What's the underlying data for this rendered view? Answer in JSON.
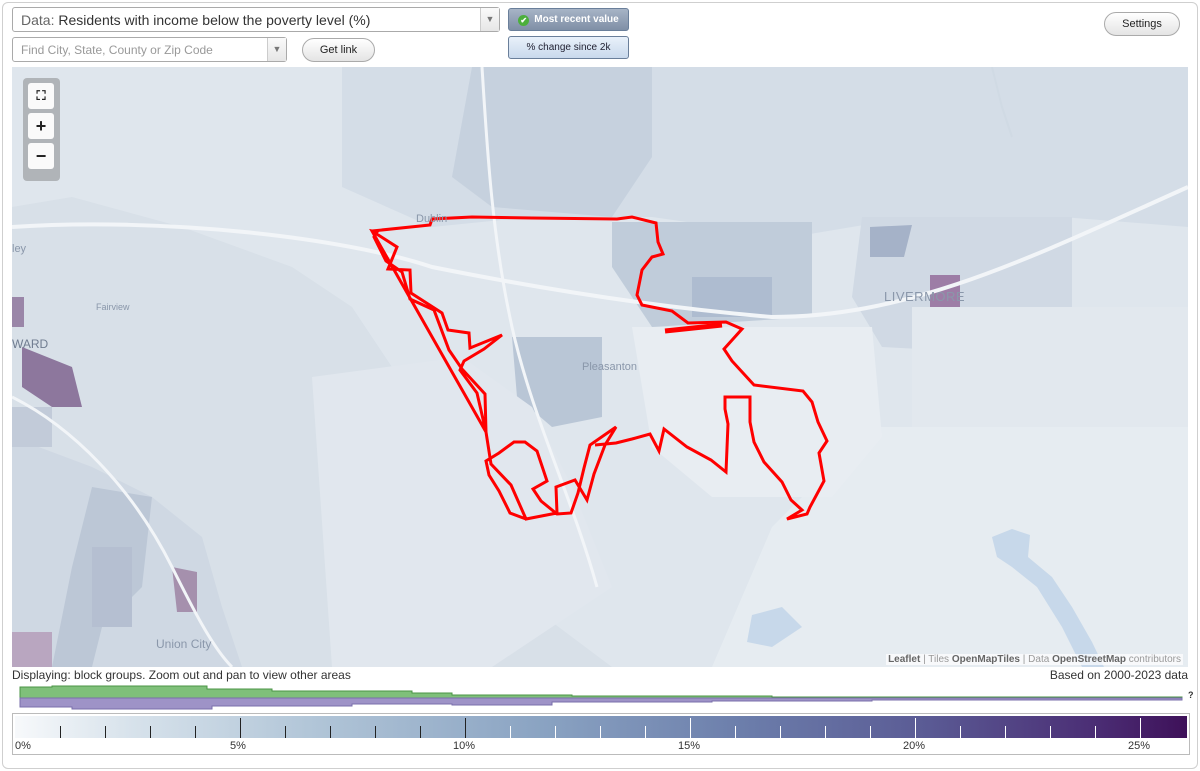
{
  "controls": {
    "data_prefix": "Data:",
    "data_value": "Residents with income below the poverty level (%)",
    "search_placeholder": "Find City, State, County or Zip Code",
    "get_link": "Get link",
    "most_recent": "Most recent value",
    "pct_change": "% change since 2k",
    "settings": "Settings"
  },
  "map": {
    "places": [
      "Dublin",
      "Pleasanton",
      "LIVERMORE",
      "Fairview",
      "WARD",
      "ley",
      "Union City"
    ],
    "attribution": {
      "leaflet": "Leaflet",
      "tiles_pre": "Tiles",
      "tiles": "OpenMapTiles",
      "data_pre": "Data",
      "osm": "OpenStreetMap",
      "contributors": "contributors"
    },
    "boundary_color": "#ff0000"
  },
  "status": {
    "displaying": "Displaying: block groups. Zoom out and pan to view other areas",
    "based_on": "Based on 2000-2023 data",
    "unknown_marker": "?"
  },
  "legend": {
    "labels": [
      "0%",
      "5%",
      "10%",
      "15%",
      "20%",
      "25%"
    ],
    "colors": [
      "#f7f9fb",
      "#b2c6d8",
      "#8aa3c2",
      "#6c7eab",
      "#5a5a94",
      "#3e1159"
    ]
  }
}
